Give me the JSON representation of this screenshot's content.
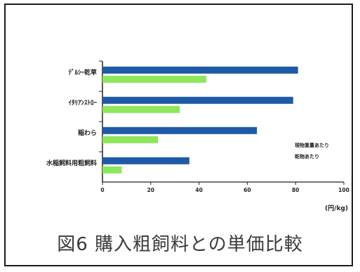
{
  "caption": "図6 購入粗飼料との単価比較",
  "chart_data": {
    "type": "bar",
    "orientation": "horizontal",
    "categories": [
      "ﾃﾞﾙｼｰ乾草",
      "ｲﾀﾘｱﾝｽﾄﾛｰ",
      "稲わら",
      "水稲飼料用粗飼料"
    ],
    "series": [
      {
        "values": [
          81,
          79,
          64,
          36
        ],
        "color": "#1f5aa6"
      },
      {
        "values": [
          43,
          32,
          23,
          8
        ],
        "color": "#8ee65a"
      }
    ],
    "xticks": [
      "0",
      "20",
      "40",
      "60",
      "80",
      "100"
    ],
    "xlim": [
      0,
      100
    ],
    "xlabel": "(円/kg)",
    "legend": [
      "現物重量あたり",
      "乾物あたり"
    ],
    "legend_position": "right",
    "grid": false
  }
}
